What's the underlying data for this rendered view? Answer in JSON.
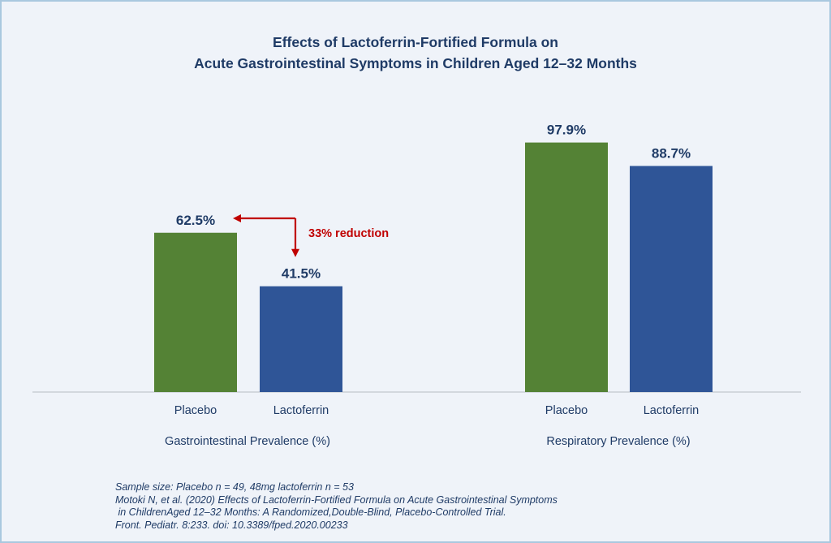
{
  "chart_data": {
    "type": "bar",
    "title_lines": [
      "Effects of Lactoferrin-Fortified Formula on",
      "Acute Gastrointestinal Symptoms in Children Aged 12–32 Months"
    ],
    "groups": [
      {
        "label": "Gastrointestinal Prevalence (%)",
        "categories": [
          "Placebo",
          "Lactoferrin"
        ],
        "values": [
          62.5,
          41.5
        ],
        "value_labels": [
          "62.5%",
          "41.5%"
        ]
      },
      {
        "label": "Respiratory Prevalence (%)",
        "categories": [
          "Placebo",
          "Lactoferrin"
        ],
        "values": [
          97.9,
          88.7
        ],
        "value_labels": [
          "97.9%",
          "88.7%"
        ]
      }
    ],
    "bar_colors": [
      "#548235",
      "#2f5597"
    ],
    "annotation": {
      "text": "33% reduction",
      "color": "#c00000"
    },
    "ylim": [
      0,
      100
    ],
    "grid": false
  },
  "footnote_lines": [
    "Sample size: Placebo n = 49, 48mg lactoferrin n = 53",
    "Motoki N, et al. (2020) Effects of Lactoferrin-Fortified Formula on Acute Gastrointestinal Symptoms",
    " in ChildrenAged 12–32 Months: A Randomized,Double-Blind, Placebo-Controlled Trial.",
    "Front. Pediatr. 8:233. doi: 10.3389/fped.2020.00233"
  ],
  "colors": {
    "text": "#1f3b66",
    "background": "#eff3f9",
    "border": "#a9c8df",
    "axis": "#b7bcc4"
  }
}
